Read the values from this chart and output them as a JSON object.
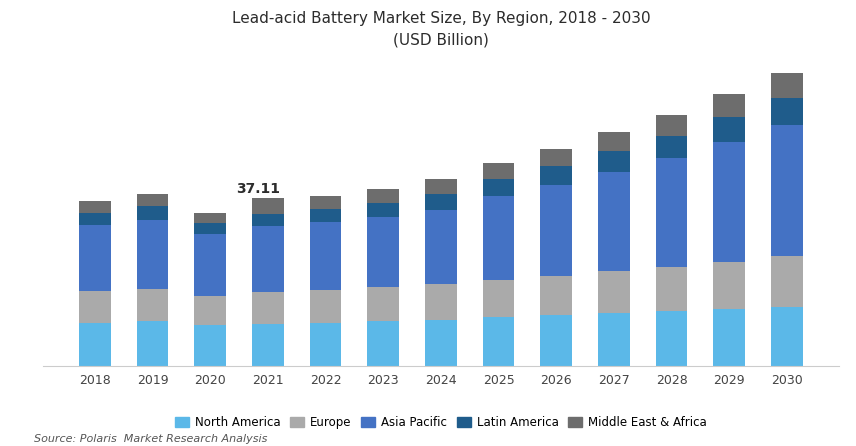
{
  "title_line1": "Lead-acid Battery Market Size, By Region, 2018 - 2030",
  "title_line2": "(USD Billion)",
  "title_color": "#2c2c2c",
  "source_text": "Source: Polaris  Market Research Analysis",
  "years": [
    2018,
    2019,
    2020,
    2021,
    2022,
    2023,
    2024,
    2025,
    2026,
    2027,
    2028,
    2029,
    2030
  ],
  "annotation_year_idx": 3,
  "annotation_text": "37.11",
  "regions": [
    "North America",
    "Europe",
    "Asia Pacific",
    "Latin America",
    "Middle East & Africa"
  ],
  "colors": [
    "#5BB8E8",
    "#AAAAAA",
    "#4472C4",
    "#1F5C8B",
    "#6D6D6D"
  ],
  "data": {
    "North America": [
      9.5,
      9.8,
      9.0,
      9.3,
      9.5,
      9.8,
      10.2,
      10.8,
      11.2,
      11.7,
      12.0,
      12.5,
      13.0
    ],
    "Europe": [
      7.0,
      7.2,
      6.5,
      7.0,
      7.2,
      7.5,
      7.8,
      8.2,
      8.7,
      9.2,
      9.8,
      10.5,
      11.2
    ],
    "Asia Pacific": [
      14.5,
      15.2,
      13.5,
      14.5,
      15.0,
      15.5,
      16.5,
      18.5,
      20.0,
      22.0,
      24.0,
      26.5,
      29.0
    ],
    "Latin America": [
      2.8,
      3.0,
      2.5,
      2.8,
      3.0,
      3.2,
      3.5,
      3.8,
      4.2,
      4.6,
      5.0,
      5.5,
      6.0
    ],
    "Middle East & Africa": [
      2.5,
      2.8,
      2.3,
      3.51,
      2.8,
      3.0,
      3.2,
      3.5,
      3.8,
      4.2,
      4.5,
      5.0,
      5.5
    ]
  },
  "ylim": [
    0,
    68
  ],
  "bar_width": 0.55,
  "background_color": "#ffffff",
  "legend_fontsize": 8.5,
  "title_fontsize": 11,
  "tick_fontsize": 9
}
